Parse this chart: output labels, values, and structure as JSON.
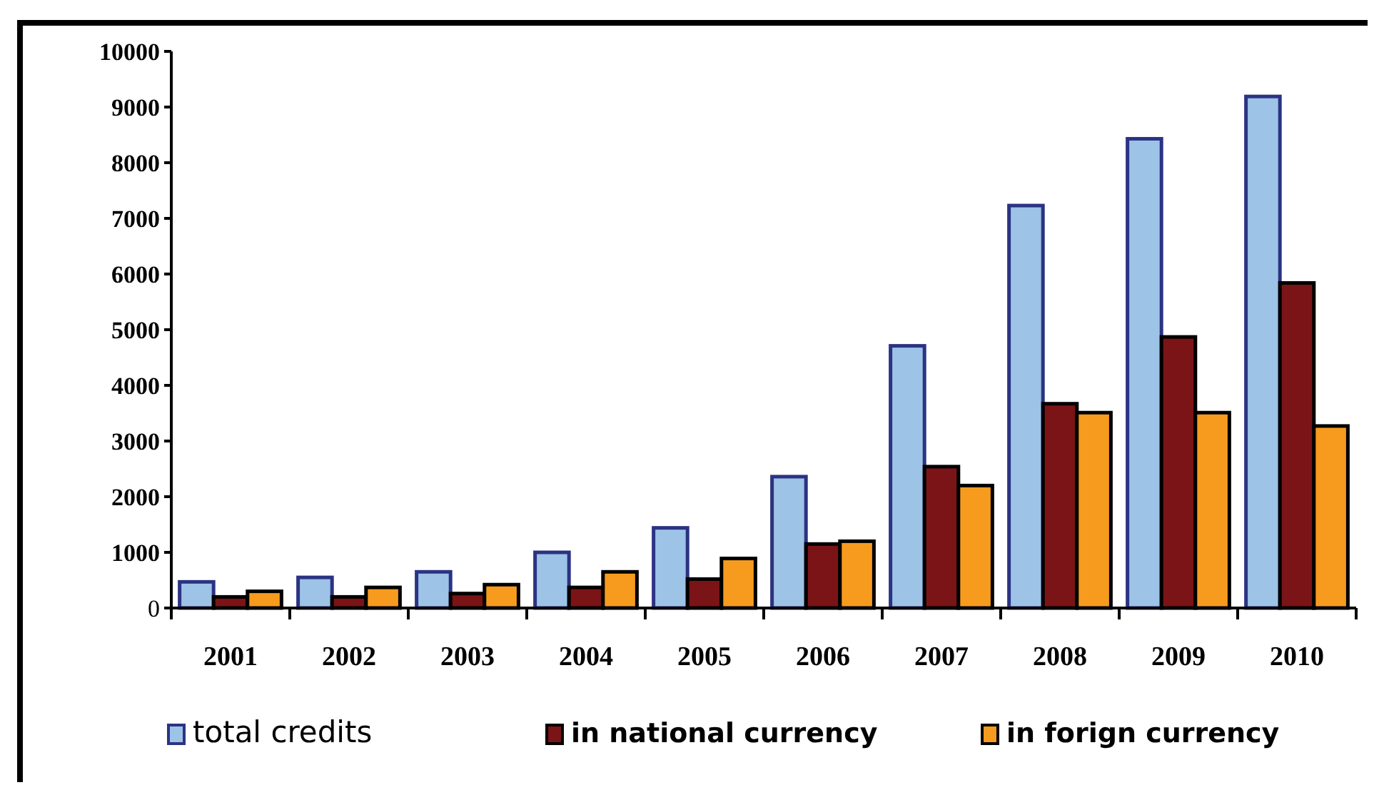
{
  "chart_data": {
    "type": "bar",
    "categories": [
      "2001",
      "2002",
      "2003",
      "2004",
      "2005",
      "2006",
      "2007",
      "2008",
      "2009",
      "2010"
    ],
    "series": [
      {
        "name": "total credits",
        "color": "#9dc3e6",
        "values": [
          470,
          550,
          650,
          1000,
          1440,
          2360,
          4710,
          7230,
          8430,
          9190
        ]
      },
      {
        "name": "in national currency",
        "color": "#7b1416",
        "values": [
          200,
          200,
          260,
          370,
          520,
          1150,
          2540,
          3670,
          4870,
          5840
        ]
      },
      {
        "name": "in forign currency",
        "color": "#f79b1e",
        "values": [
          300,
          370,
          420,
          650,
          890,
          1200,
          2200,
          3510,
          3510,
          3270
        ]
      }
    ],
    "ylim": [
      0,
      10000
    ],
    "yticks": [
      0,
      1000,
      2000,
      3000,
      4000,
      5000,
      6000,
      7000,
      8000,
      9000,
      10000
    ],
    "grid": false,
    "legend": "bottom"
  }
}
